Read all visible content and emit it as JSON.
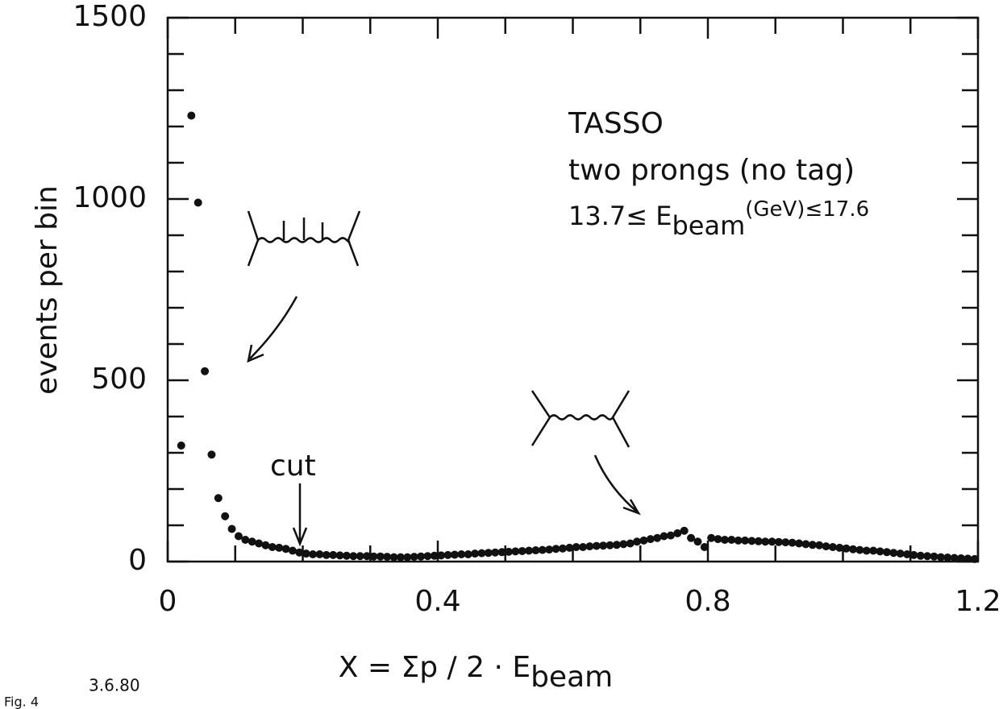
{
  "chart_data": {
    "type": "scatter",
    "ylabel": "events per bin",
    "xlabel": {
      "main": "X = Σp / 2 · E",
      "sub": "beam"
    },
    "annotations": {
      "experiment": "TASSO",
      "selection": "two prongs (no tag)",
      "energy": {
        "pre": "13.7≤ E",
        "sub": "beam",
        "post": "(GeV)≤17.6"
      },
      "cut": "cut"
    },
    "footer": {
      "figure": "Fig. 4",
      "date": "3.6.80"
    },
    "color": "#111111",
    "x": [
      0.02,
      0.035,
      0.045,
      0.055,
      0.065,
      0.075,
      0.085,
      0.095,
      0.105,
      0.115,
      0.125,
      0.135,
      0.145,
      0.155,
      0.165,
      0.175,
      0.185,
      0.195,
      0.205,
      0.215,
      0.225,
      0.235,
      0.245,
      0.255,
      0.265,
      0.275,
      0.285,
      0.295,
      0.305,
      0.315,
      0.325,
      0.335,
      0.345,
      0.355,
      0.365,
      0.375,
      0.385,
      0.395,
      0.405,
      0.415,
      0.425,
      0.435,
      0.445,
      0.455,
      0.465,
      0.475,
      0.485,
      0.495,
      0.505,
      0.515,
      0.525,
      0.535,
      0.545,
      0.555,
      0.565,
      0.575,
      0.585,
      0.595,
      0.605,
      0.615,
      0.625,
      0.635,
      0.645,
      0.655,
      0.665,
      0.675,
      0.685,
      0.695,
      0.705,
      0.715,
      0.725,
      0.735,
      0.745,
      0.755,
      0.765,
      0.775,
      0.785,
      0.795,
      0.805,
      0.815,
      0.825,
      0.835,
      0.845,
      0.855,
      0.865,
      0.875,
      0.885,
      0.895,
      0.905,
      0.915,
      0.925,
      0.935,
      0.945,
      0.955,
      0.965,
      0.975,
      0.985,
      0.995,
      1.005,
      1.015,
      1.025,
      1.035,
      1.045,
      1.055,
      1.065,
      1.075,
      1.085,
      1.095,
      1.105,
      1.115,
      1.125,
      1.135,
      1.145,
      1.155,
      1.165,
      1.175,
      1.185,
      1.195
    ],
    "values": [
      320,
      1230,
      990,
      525,
      295,
      175,
      125,
      90,
      70,
      60,
      55,
      50,
      45,
      40,
      38,
      35,
      30,
      25,
      22,
      20,
      20,
      18,
      18,
      17,
      16,
      15,
      15,
      15,
      14,
      14,
      13,
      12,
      12,
      12,
      13,
      14,
      15,
      16,
      17,
      18,
      19,
      20,
      20,
      22,
      23,
      24,
      25,
      26,
      27,
      28,
      29,
      30,
      31,
      32,
      33,
      35,
      36,
      38,
      40,
      40,
      42,
      43,
      44,
      45,
      46,
      48,
      50,
      55,
      58,
      62,
      65,
      70,
      72,
      78,
      85,
      65,
      55,
      40,
      65,
      62,
      60,
      60,
      58,
      58,
      57,
      56,
      55,
      55,
      54,
      53,
      52,
      50,
      48,
      46,
      45,
      42,
      40,
      38,
      36,
      34,
      32,
      30,
      30,
      28,
      26,
      24,
      22,
      20,
      18,
      16,
      15,
      14,
      12,
      11,
      10,
      9,
      8,
      7
    ],
    "xlim": [
      0,
      1.2
    ],
    "xticks": [
      0,
      0.4,
      0.8,
      1.2
    ],
    "x_minor_ticks": [
      0.1,
      0.2,
      0.3,
      0.5,
      0.6,
      0.7,
      0.9,
      1.0,
      1.1
    ],
    "ylim": [
      0,
      1500
    ],
    "yticks": [
      0,
      500,
      1000,
      1500
    ],
    "y_minor_ticks": [
      100,
      200,
      300,
      400,
      600,
      700,
      800,
      900,
      1100,
      1200,
      1300,
      1400
    ]
  }
}
